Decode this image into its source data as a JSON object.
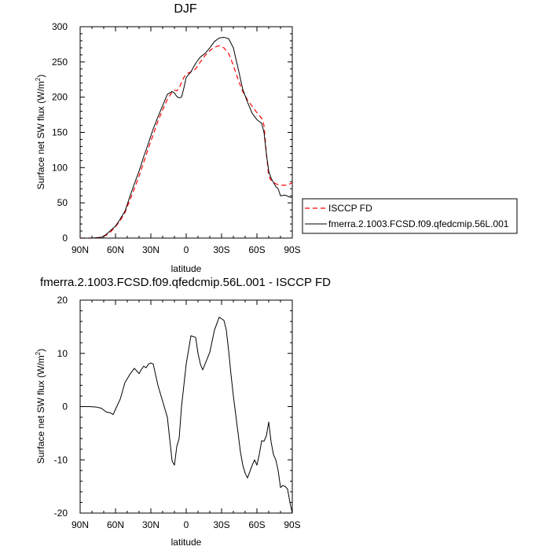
{
  "chart_data": [
    {
      "type": "line",
      "title": "DJF",
      "xlabel": "latitude",
      "ylabel": "Surface net SW flux (W/m",
      "ylabel_sup": "2",
      "ylabel_end": ")",
      "xticks": [
        {
          "value": -90,
          "label": "90N"
        },
        {
          "value": -60,
          "label": "60N"
        },
        {
          "value": -30,
          "label": "30N"
        },
        {
          "value": 0,
          "label": "0"
        },
        {
          "value": 30,
          "label": "30S"
        },
        {
          "value": 60,
          "label": "60S"
        },
        {
          "value": 90,
          "label": "90S"
        }
      ],
      "xlim": [
        -90,
        90
      ],
      "ylim": [
        0,
        300
      ],
      "yticks": [
        0,
        50,
        100,
        150,
        200,
        250,
        300
      ],
      "legend_placement": "right",
      "series": [
        {
          "name": "ISCCP FD",
          "color": "#ff0000",
          "dash": "dashed",
          "x": [
            -90,
            -80,
            -72,
            -68,
            -64,
            -60,
            -56,
            -52,
            -48,
            -44,
            -40,
            -36,
            -32,
            -28,
            -24,
            -20,
            -16,
            -12,
            -10,
            -8,
            -6,
            -4,
            -2,
            0,
            4,
            8,
            12,
            16,
            20,
            24,
            28,
            32,
            36,
            40,
            44,
            48,
            52,
            56,
            60,
            64,
            66,
            68,
            70,
            72,
            76,
            80,
            84,
            88,
            90
          ],
          "y": [
            0,
            0,
            1,
            4,
            9,
            16,
            25,
            36,
            53,
            70,
            88,
            108,
            128,
            147,
            166,
            182,
            197,
            207,
            210,
            209,
            213,
            221,
            228,
            233,
            236,
            240,
            250,
            259,
            266,
            271,
            273,
            270,
            262,
            245,
            225,
            208,
            196,
            187,
            178,
            170,
            160,
            120,
            88,
            82,
            77,
            75,
            75,
            77,
            78
          ]
        },
        {
          "name": "fmerra.2.1003.FCSD.f09.qfedcmip.56L.001",
          "color": "#000000",
          "dash": "solid",
          "x": [
            -90,
            -80,
            -72,
            -68,
            -64,
            -60,
            -56,
            -52,
            -48,
            -44,
            -40,
            -36,
            -32,
            -28,
            -24,
            -20,
            -16,
            -12,
            -10,
            -8,
            -6,
            -4,
            -2,
            0,
            4,
            8,
            12,
            16,
            20,
            24,
            28,
            32,
            36,
            40,
            44,
            48,
            52,
            56,
            60,
            64,
            66,
            68,
            70,
            72,
            76,
            78,
            80,
            84,
            88,
            90
          ],
          "y": [
            0,
            0,
            1,
            5,
            11,
            17,
            27,
            38,
            58,
            77,
            95,
            116,
            135,
            155,
            172,
            188,
            204,
            208,
            206,
            201,
            199,
            200,
            213,
            228,
            236,
            248,
            257,
            262,
            270,
            279,
            284,
            285,
            283,
            270,
            241,
            211,
            193,
            177,
            168,
            163,
            150,
            120,
            95,
            85,
            73,
            70,
            60,
            61,
            58,
            58
          ]
        }
      ]
    },
    {
      "type": "line",
      "title": "fmerra.2.1003.FCSD.f09.qfedcmip.56L.001 - ISCCP FD",
      "xlabel": "latitude",
      "ylabel": "Surface net SW flux (W/m",
      "ylabel_sup": "2",
      "ylabel_end": ")",
      "xticks": [
        {
          "value": -90,
          "label": "90N"
        },
        {
          "value": -60,
          "label": "60N"
        },
        {
          "value": -30,
          "label": "30N"
        },
        {
          "value": 0,
          "label": "0"
        },
        {
          "value": 30,
          "label": "30S"
        },
        {
          "value": 60,
          "label": "60S"
        },
        {
          "value": 90,
          "label": "90S"
        }
      ],
      "xlim": [
        -90,
        90
      ],
      "ylim": [
        -20,
        20
      ],
      "yticks": [
        -20,
        -10,
        0,
        10,
        20
      ],
      "series": [
        {
          "color": "#000000",
          "dash": "solid",
          "x": [
            -90,
            -82,
            -76,
            -72,
            -68,
            -64,
            -62,
            -60,
            -56,
            -52,
            -48,
            -44,
            -40,
            -38,
            -36,
            -34,
            -32,
            -30,
            -28,
            -24,
            -20,
            -16,
            -12,
            -10,
            -8,
            -6,
            -4,
            -2,
            0,
            4,
            8,
            10,
            12,
            14,
            16,
            20,
            24,
            28,
            32,
            34,
            36,
            38,
            40,
            42,
            44,
            46,
            48,
            50,
            52,
            54,
            56,
            58,
            60,
            62,
            64,
            66,
            68,
            70,
            72,
            74,
            76,
            78,
            80,
            82,
            84,
            86,
            88,
            90
          ],
          "y": [
            0,
            0,
            -0.1,
            -0.3,
            -1,
            -1.2,
            -1.5,
            -0.5,
            1.4,
            4.5,
            6,
            7.2,
            6.2,
            7,
            7.6,
            7.3,
            8,
            8.2,
            8,
            4,
            1,
            -2,
            -10.2,
            -11,
            -7.5,
            -6,
            0,
            4,
            8,
            13.3,
            13,
            10,
            8,
            6.9,
            8,
            10.2,
            14.4,
            16.8,
            16.2,
            14.4,
            10.5,
            6,
            2,
            -1.5,
            -5,
            -8.5,
            -11,
            -12.5,
            -13.4,
            -12.2,
            -11,
            -10,
            -11,
            -9,
            -6.4,
            -6.5,
            -5.5,
            -2.9,
            -6.6,
            -9,
            -10,
            -12,
            -15.2,
            -14.8,
            -15,
            -15.5,
            -18,
            -20
          ]
        }
      ]
    }
  ]
}
